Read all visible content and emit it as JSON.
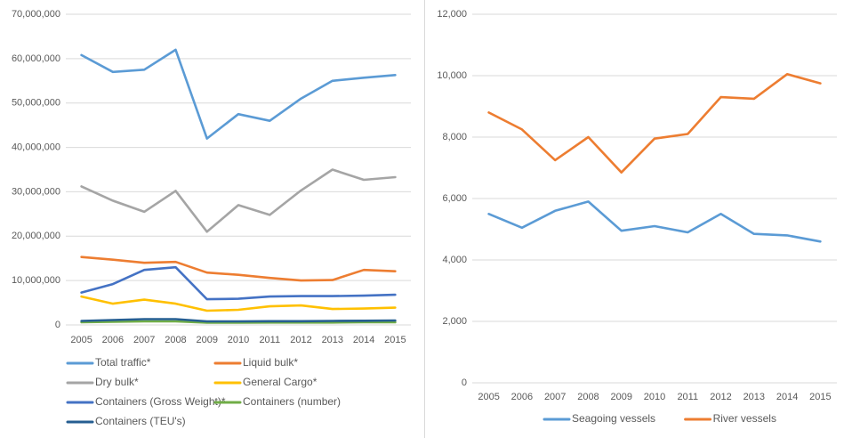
{
  "colors": {
    "axis_text": "#595959",
    "gridline": "#d9d9d9",
    "divider": "#d9d9d9"
  },
  "chart_data": [
    {
      "id": "cargo",
      "type": "line",
      "title": "",
      "xlabel": "",
      "ylabel": "",
      "grid": true,
      "legend_position": "bottom-left-two-columns",
      "ylim": [
        0,
        70000000
      ],
      "ytick_step": 10000000,
      "ytick_labels": [
        "0",
        "10,000,000",
        "20,000,000",
        "30,000,000",
        "40,000,000",
        "50,000,000",
        "60,000,000",
        "70,000,000"
      ],
      "categories": [
        "2005",
        "2006",
        "2007",
        "2008",
        "2009",
        "2010",
        "2011",
        "2012",
        "2013",
        "2014",
        "2015"
      ],
      "series": [
        {
          "name": "Total traffic*",
          "color": "#5B9BD5",
          "values": [
            60800000,
            57000000,
            57500000,
            62000000,
            42000000,
            47500000,
            46000000,
            51000000,
            55000000,
            55700000,
            56300000
          ]
        },
        {
          "name": "Liquid bulk*",
          "color": "#ED7D31",
          "values": [
            15300000,
            14700000,
            14000000,
            14200000,
            11800000,
            11300000,
            10600000,
            10000000,
            10100000,
            12400000,
            12100000
          ]
        },
        {
          "name": "Dry bulk*",
          "color": "#A5A5A5",
          "values": [
            31200000,
            28000000,
            25500000,
            30200000,
            21000000,
            27000000,
            24800000,
            30300000,
            35000000,
            32700000,
            33300000
          ]
        },
        {
          "name": "General Cargo*",
          "color": "#FFC000",
          "values": [
            6400000,
            4800000,
            5700000,
            4800000,
            3200000,
            3400000,
            4200000,
            4400000,
            3600000,
            3700000,
            3900000
          ]
        },
        {
          "name": "Containers (Gross Weight)*",
          "color": "#4472C4",
          "values": [
            7300000,
            9200000,
            12400000,
            13000000,
            5800000,
            5900000,
            6400000,
            6500000,
            6500000,
            6600000,
            6800000
          ]
        },
        {
          "name": "Containers (number)",
          "color": "#70AD47",
          "values": [
            600000,
            700000,
            800000,
            800000,
            500000,
            500000,
            550000,
            550000,
            550000,
            600000,
            600000
          ]
        },
        {
          "name": "Containers (TEU's)",
          "color": "#255E91",
          "values": [
            900000,
            1100000,
            1300000,
            1300000,
            800000,
            800000,
            850000,
            850000,
            900000,
            950000,
            1000000
          ]
        }
      ]
    },
    {
      "id": "vessels",
      "type": "line",
      "title": "",
      "xlabel": "",
      "ylabel": "",
      "grid": true,
      "legend_position": "bottom-center-row",
      "ylim": [
        0,
        12000
      ],
      "ytick_step": 2000,
      "ytick_labels": [
        "0",
        "2,000",
        "4,000",
        "6,000",
        "8,000",
        "10,000",
        "12,000"
      ],
      "categories": [
        "2005",
        "2006",
        "2007",
        "2008",
        "2009",
        "2010",
        "2011",
        "2012",
        "2013",
        "2014",
        "2015"
      ],
      "series": [
        {
          "name": "Seagoing vessels",
          "color": "#5B9BD5",
          "values": [
            5500,
            5050,
            5600,
            5900,
            4950,
            5100,
            4900,
            5500,
            4850,
            4800,
            4600
          ]
        },
        {
          "name": "River vessels",
          "color": "#ED7D31",
          "values": [
            8800,
            8250,
            7250,
            8000,
            6850,
            7950,
            8100,
            9300,
            9250,
            10050,
            9750
          ]
        }
      ]
    }
  ]
}
